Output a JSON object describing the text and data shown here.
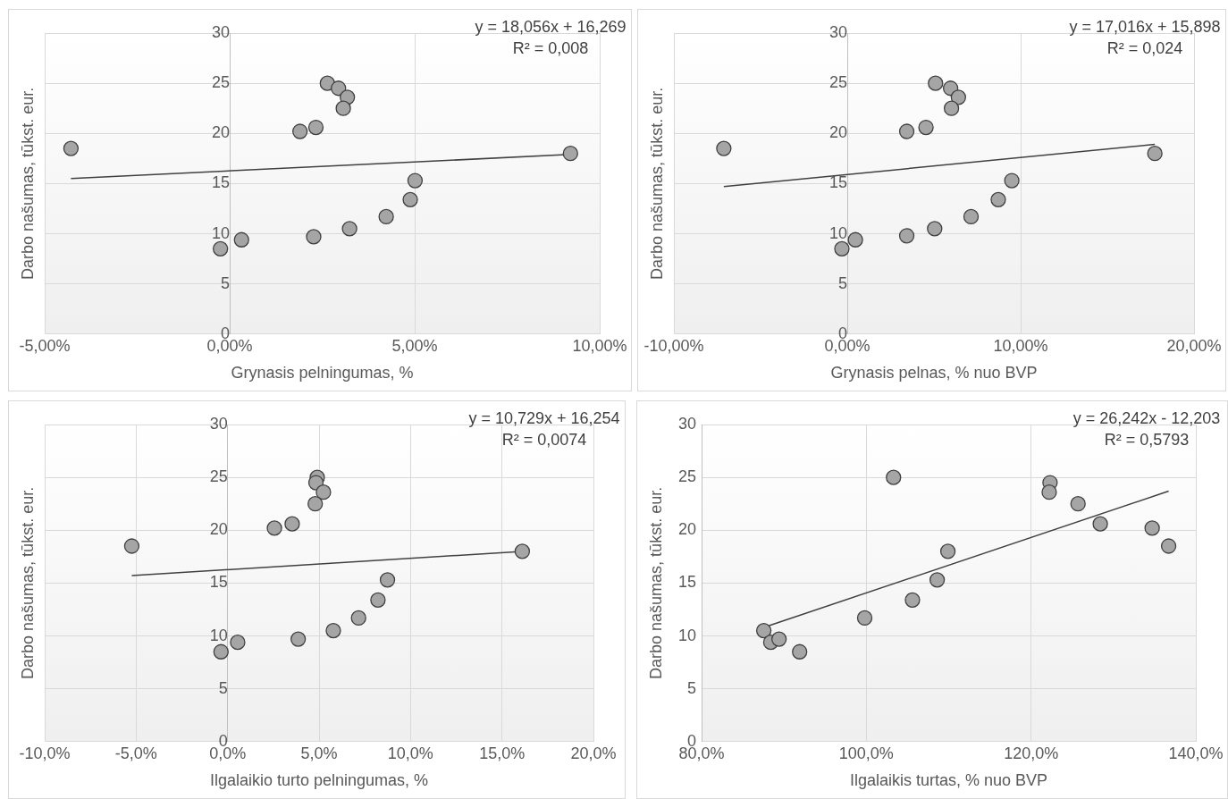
{
  "chart_data": [
    {
      "type": "scatter",
      "xlabel": "Grynasis pelningumas, %",
      "ylabel": "Darbo našumas, tūkst. eur.",
      "annotations": [
        "y = 18,056x + 16,269",
        "R² = 0,008"
      ],
      "grid": true,
      "legend": false,
      "xlim": [
        -5,
        10
      ],
      "xticks": [
        {
          "value": -5,
          "label": "-5,00%"
        },
        {
          "value": 0,
          "label": "0,00%"
        },
        {
          "value": 5,
          "label": "5,00%"
        },
        {
          "value": 10,
          "label": "10,00%"
        }
      ],
      "ylim": [
        0,
        30
      ],
      "yticks": [
        0,
        5,
        10,
        15,
        20,
        25,
        30
      ],
      "series": [
        {
          "marker": "circle",
          "color": "#a5a5a5",
          "x": [
            -4.29,
            -0.25,
            0.32,
            1.9,
            2.33,
            2.27,
            2.64,
            2.94,
            3.18,
            3.07,
            3.24,
            4.23,
            4.88,
            5.01,
            9.21
          ],
          "values": [
            18.5,
            8.5,
            9.4,
            20.2,
            20.6,
            9.7,
            25.0,
            24.5,
            23.6,
            22.5,
            10.5,
            11.7,
            13.4,
            15.3,
            18.0
          ]
        },
        {
          "type": "line",
          "marker": "none",
          "color": "#404040",
          "x": [
            -4.29,
            9.21
          ],
          "values": [
            15.5,
            17.9
          ]
        }
      ]
    },
    {
      "type": "scatter",
      "xlabel": "Grynasis pelnas, % nuo BVP",
      "ylabel": "Darbo našumas, tūkst. eur.",
      "annotations": [
        "y = 17,016x + 15,898",
        "R² = 0,024"
      ],
      "grid": true,
      "legend": false,
      "xlim": [
        -10,
        20
      ],
      "xticks": [
        {
          "value": -10,
          "label": "-10,00%"
        },
        {
          "value": 0,
          "label": "0,00%"
        },
        {
          "value": 10,
          "label": "10,00%"
        },
        {
          "value": 20,
          "label": "20,00%"
        }
      ],
      "ylim": [
        0,
        30
      ],
      "yticks": [
        0,
        5,
        10,
        15,
        20,
        25,
        30
      ],
      "series": [
        {
          "marker": "circle",
          "color": "#a5a5a5",
          "x": [
            -7.12,
            -0.31,
            0.47,
            3.43,
            4.54,
            3.43,
            5.09,
            5.96,
            6.41,
            6.01,
            5.04,
            7.14,
            8.71,
            9.49,
            17.74
          ],
          "values": [
            18.5,
            8.5,
            9.4,
            20.2,
            20.6,
            9.8,
            25.0,
            24.5,
            23.6,
            22.5,
            10.5,
            11.7,
            13.4,
            15.3,
            18.0
          ]
        },
        {
          "type": "line",
          "marker": "none",
          "color": "#404040",
          "x": [
            -7.12,
            17.74
          ],
          "values": [
            14.7,
            18.9
          ]
        }
      ]
    },
    {
      "type": "scatter",
      "xlabel": "Ilgalaikio turto pelningumas, %",
      "ylabel": "Darbo našumas, tūkst. eur.",
      "annotations": [
        "y = 10,729x + 16,254",
        "R² = 0,0074"
      ],
      "grid": true,
      "legend": false,
      "xlim": [
        -10,
        20
      ],
      "xticks": [
        {
          "value": -10,
          "label": "-10,0%"
        },
        {
          "value": -5,
          "label": "-5,0%"
        },
        {
          "value": 0,
          "label": "0,0%"
        },
        {
          "value": 5,
          "label": "5,0%"
        },
        {
          "value": 10,
          "label": "10,0%"
        },
        {
          "value": 15,
          "label": "15,0%"
        },
        {
          "value": 20,
          "label": "20,0%"
        }
      ],
      "ylim": [
        0,
        30
      ],
      "yticks": [
        0,
        5,
        10,
        15,
        20,
        25,
        30
      ],
      "series": [
        {
          "marker": "circle",
          "color": "#a5a5a5",
          "x": [
            -5.24,
            -0.36,
            0.55,
            2.56,
            3.53,
            3.86,
            4.9,
            4.83,
            5.24,
            4.79,
            5.78,
            7.16,
            8.22,
            8.74,
            16.11
          ],
          "values": [
            18.5,
            8.5,
            9.4,
            20.2,
            20.6,
            9.7,
            25.0,
            24.5,
            23.6,
            22.5,
            10.5,
            11.7,
            13.4,
            15.3,
            18.0
          ]
        },
        {
          "type": "line",
          "marker": "none",
          "color": "#404040",
          "x": [
            -5.24,
            16.11
          ],
          "values": [
            15.7,
            18.0
          ]
        }
      ]
    },
    {
      "type": "scatter",
      "xlabel": "Ilgalaikis turtas, % nuo BVP",
      "ylabel": "Darbo našumas, tūkst. eur.",
      "annotations": [
        "y = 26,242x - 12,203",
        "R² = 0,5793"
      ],
      "grid": true,
      "legend": false,
      "xlim": [
        80,
        140
      ],
      "xticks": [
        {
          "value": 80,
          "label": "80,0%"
        },
        {
          "value": 100,
          "label": "100,0%"
        },
        {
          "value": 120,
          "label": "120,0%"
        },
        {
          "value": 140,
          "label": "140,0%"
        }
      ],
      "ylim": [
        0,
        30
      ],
      "yticks": [
        0,
        5,
        10,
        15,
        20,
        25,
        30
      ],
      "series": [
        {
          "marker": "circle",
          "color": "#a5a5a5",
          "x": [
            103.3,
            122.3,
            122.2,
            125.7,
            128.4,
            134.7,
            136.7,
            109.9,
            108.6,
            105.6,
            99.8,
            87.55,
            88.4,
            89.4,
            91.9
          ],
          "values": [
            25.0,
            24.5,
            23.6,
            22.5,
            20.6,
            20.2,
            18.5,
            18.0,
            15.3,
            13.4,
            11.7,
            10.5,
            9.4,
            9.7,
            8.5
          ]
        },
        {
          "type": "line",
          "marker": "none",
          "color": "#404040",
          "x": [
            87.55,
            136.7
          ],
          "values": [
            10.8,
            23.7
          ]
        }
      ]
    }
  ]
}
